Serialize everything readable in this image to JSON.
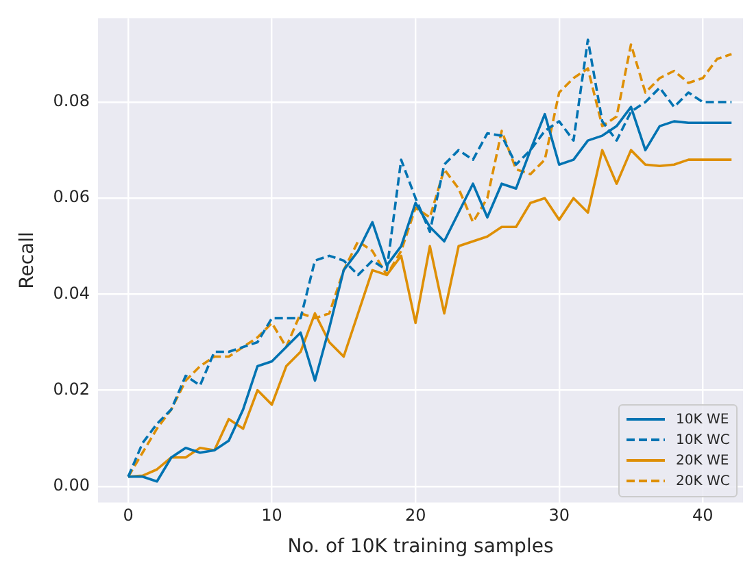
{
  "chart_data": {
    "type": "line",
    "xlabel": "No. of 10K training samples",
    "ylabel": "Recall",
    "x": [
      0,
      1,
      2,
      3,
      4,
      5,
      6,
      7,
      8,
      9,
      10,
      11,
      12,
      13,
      14,
      15,
      16,
      17,
      18,
      19,
      20,
      21,
      22,
      23,
      24,
      25,
      26,
      27,
      28,
      29,
      30,
      31,
      32,
      33,
      34,
      35,
      36,
      37,
      38,
      39,
      40,
      41,
      42
    ],
    "series": [
      {
        "name": "10K WE",
        "color": "#0173b2",
        "line_style": "solid",
        "values": [
          0.002,
          0.002,
          0.001,
          0.006,
          0.008,
          0.007,
          0.0075,
          0.0095,
          0.016,
          0.025,
          0.026,
          0.029,
          0.032,
          0.022,
          0.033,
          0.045,
          0.049,
          0.055,
          0.046,
          0.05,
          0.059,
          0.054,
          0.051,
          0.057,
          0.063,
          0.056,
          0.063,
          0.062,
          0.07,
          0.0775,
          0.067,
          0.068,
          0.072,
          0.073,
          0.075,
          0.079,
          0.07,
          0.075,
          0.076,
          0.0757,
          0.0757,
          0.0757,
          0.0757
        ]
      },
      {
        "name": "10K WC",
        "color": "#0173b2",
        "line_style": "dashed",
        "values": [
          0.002,
          0.009,
          0.013,
          0.016,
          0.023,
          0.021,
          0.028,
          0.028,
          0.029,
          0.03,
          0.035,
          0.035,
          0.035,
          0.047,
          0.048,
          0.047,
          0.044,
          0.047,
          0.045,
          0.068,
          0.06,
          0.053,
          0.067,
          0.07,
          0.068,
          0.0735,
          0.073,
          0.067,
          0.07,
          0.074,
          0.076,
          0.072,
          0.093,
          0.076,
          0.072,
          0.078,
          0.08,
          0.083,
          0.079,
          0.082,
          0.08,
          0.08,
          0.08
        ]
      },
      {
        "name": "20K WE",
        "color": "#de8f05",
        "line_style": "solid",
        "values": [
          0.002,
          0.0022,
          0.0035,
          0.006,
          0.006,
          0.008,
          0.0075,
          0.014,
          0.012,
          0.02,
          0.017,
          0.025,
          0.028,
          0.036,
          0.03,
          0.027,
          0.036,
          0.045,
          0.044,
          0.048,
          0.034,
          0.05,
          0.036,
          0.05,
          0.051,
          0.052,
          0.054,
          0.054,
          0.059,
          0.06,
          0.0555,
          0.06,
          0.057,
          0.07,
          0.063,
          0.07,
          0.067,
          0.0667,
          0.067,
          0.068,
          0.068,
          0.068,
          0.068
        ]
      },
      {
        "name": "20K WC",
        "color": "#de8f05",
        "line_style": "dashed",
        "values": [
          0.002,
          0.007,
          0.012,
          0.016,
          0.022,
          0.025,
          0.027,
          0.027,
          0.029,
          0.031,
          0.034,
          0.029,
          0.036,
          0.035,
          0.036,
          0.045,
          0.051,
          0.049,
          0.044,
          0.049,
          0.058,
          0.056,
          0.066,
          0.062,
          0.055,
          0.06,
          0.074,
          0.066,
          0.065,
          0.068,
          0.082,
          0.085,
          0.087,
          0.075,
          0.077,
          0.092,
          0.082,
          0.085,
          0.0865,
          0.084,
          0.085,
          0.089,
          0.09
        ]
      }
    ],
    "xlim": [
      -2.1,
      42.8
    ],
    "xticks": [
      0,
      10,
      20,
      30,
      40
    ],
    "ylim": [
      -0.0034,
      0.0975
    ],
    "yticks": [
      {
        "value": 0,
        "label": "0.00"
      },
      {
        "value": 0.02,
        "label": "0.02"
      },
      {
        "value": 0.04,
        "label": "0.04"
      },
      {
        "value": 0.06,
        "label": "0.06"
      },
      {
        "value": 0.08,
        "label": "0.08"
      }
    ],
    "grid": true,
    "legend": "bottom right",
    "marker": "none"
  }
}
